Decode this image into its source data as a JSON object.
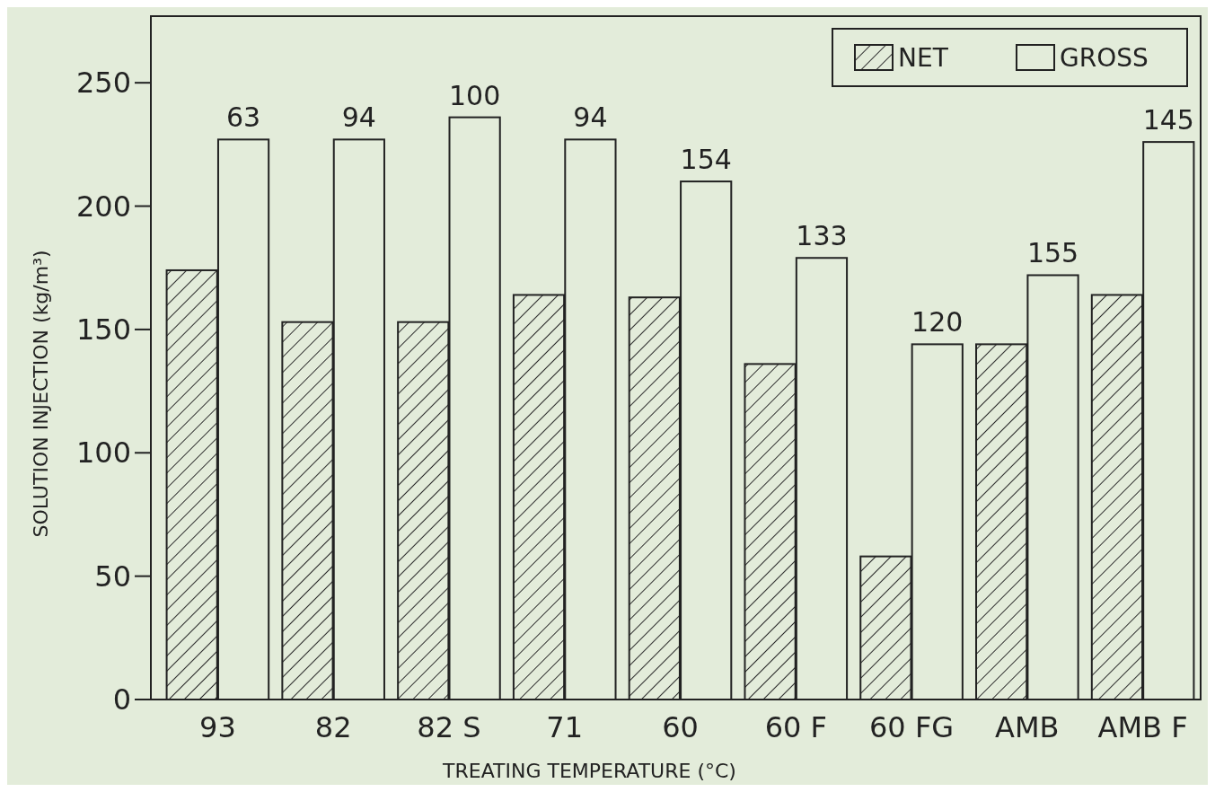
{
  "chart_data": {
    "type": "bar",
    "xlabel": "TREATING TEMPERATURE (°C)",
    "ylabel": "SOLUTION INJECTION (kg/m³)",
    "categories": [
      "93",
      "82",
      "82 S",
      "71",
      "60",
      "60 F",
      "60 FG",
      "AMB",
      "AMB F"
    ],
    "series": [
      {
        "name": "NET",
        "color": "#2b2b2b",
        "values": [
          174,
          153,
          153,
          164,
          163,
          136,
          58,
          144,
          164
        ]
      },
      {
        "name": "GROSS",
        "color": "#e3ecda",
        "values": [
          227,
          227,
          236,
          227,
          210,
          179,
          144,
          172,
          226
        ]
      }
    ],
    "annotations": [
      {
        "text": "63",
        "x": "93",
        "y": 227
      },
      {
        "text": "94",
        "x": "82",
        "y": 227
      },
      {
        "text": "100",
        "x": "82 S",
        "y": 236
      },
      {
        "text": "94",
        "x": "71",
        "y": 227
      },
      {
        "text": "154",
        "x": "60",
        "y": 210
      },
      {
        "text": "133",
        "x": "60 F",
        "y": 179
      },
      {
        "text": "120",
        "x": "60 FG",
        "y": 144
      },
      {
        "text": "155",
        "x": "AMB",
        "y": 172
      },
      {
        "text": "145",
        "x": "AMB F",
        "y": 226
      }
    ],
    "ylim": [
      0,
      277
    ],
    "yticks": [
      0,
      50,
      100,
      150,
      200,
      250
    ],
    "legend": "top right",
    "grid": false
  }
}
